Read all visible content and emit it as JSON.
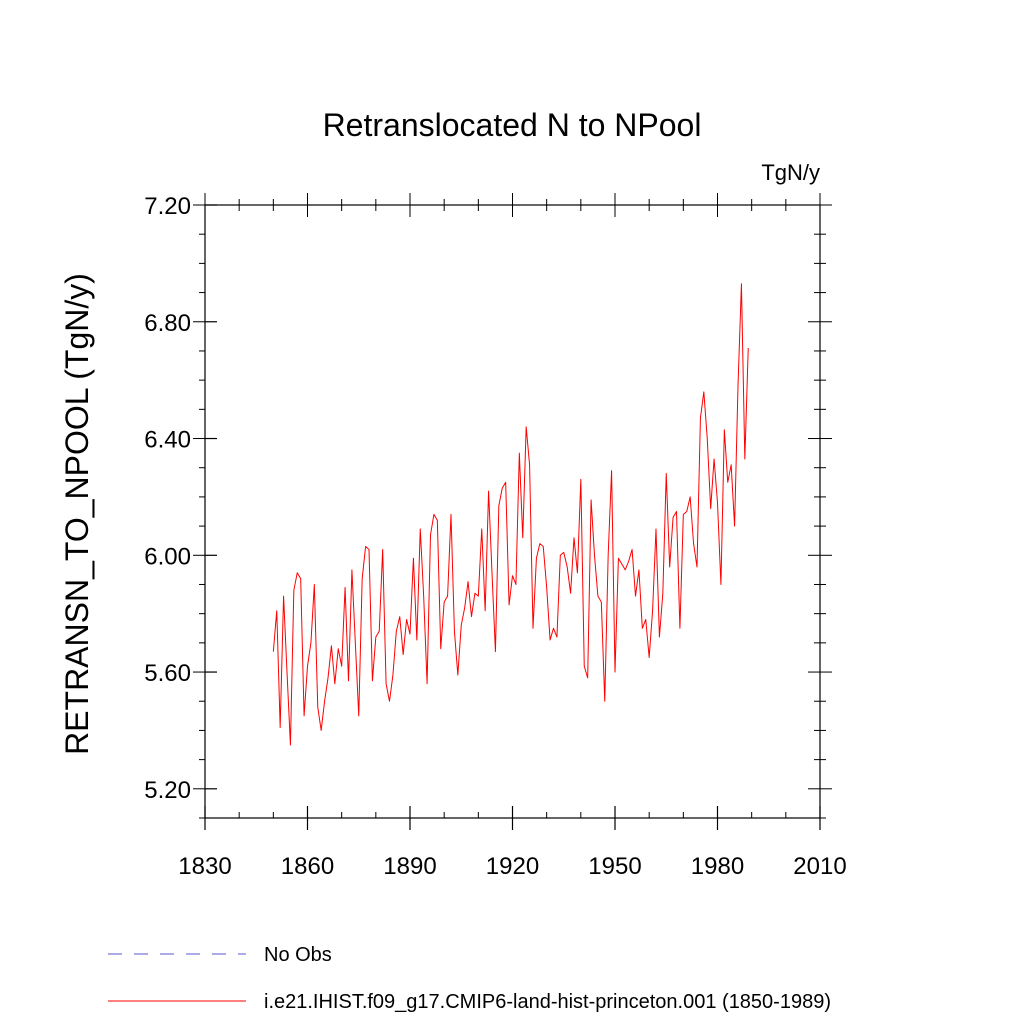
{
  "chart_data": {
    "type": "line",
    "title": "Retranslocated N to NPool",
    "units_label": "TgN/y",
    "ylabel": "RETRANSN_TO_NPOOL  (TgN/y)",
    "xlabel": "",
    "xlim": [
      1830,
      2010
    ],
    "ylim": [
      5.1,
      7.2
    ],
    "x_ticks": [
      "1830",
      "1860",
      "1890",
      "1920",
      "1950",
      "1980",
      "2010"
    ],
    "y_ticks": [
      "5.20",
      "5.60",
      "6.00",
      "6.40",
      "6.80",
      "7.20"
    ],
    "grid": false,
    "legend_position": "bottom-left",
    "series": [
      {
        "name": "No Obs",
        "color": "#5a5ad0",
        "dash": "dashed",
        "x": [],
        "y": []
      },
      {
        "name": "i.e21.IHIST.f09_g17.CMIP6-land-hist-princeton.001 (1850-1989)",
        "color": "#ff0000",
        "dash": "solid",
        "x": [
          1850,
          1851,
          1852,
          1853,
          1854,
          1855,
          1856,
          1857,
          1858,
          1859,
          1860,
          1861,
          1862,
          1863,
          1864,
          1865,
          1866,
          1867,
          1868,
          1869,
          1870,
          1871,
          1872,
          1873,
          1874,
          1875,
          1876,
          1877,
          1878,
          1879,
          1880,
          1881,
          1882,
          1883,
          1884,
          1885,
          1886,
          1887,
          1888,
          1889,
          1890,
          1891,
          1892,
          1893,
          1894,
          1895,
          1896,
          1897,
          1898,
          1899,
          1900,
          1901,
          1902,
          1903,
          1904,
          1905,
          1906,
          1907,
          1908,
          1909,
          1910,
          1911,
          1912,
          1913,
          1914,
          1915,
          1916,
          1917,
          1918,
          1919,
          1920,
          1921,
          1922,
          1923,
          1924,
          1925,
          1926,
          1927,
          1928,
          1929,
          1930,
          1931,
          1932,
          1933,
          1934,
          1935,
          1936,
          1937,
          1938,
          1939,
          1940,
          1941,
          1942,
          1943,
          1944,
          1945,
          1946,
          1947,
          1948,
          1949,
          1950,
          1951,
          1952,
          1953,
          1954,
          1955,
          1956,
          1957,
          1958,
          1959,
          1960,
          1961,
          1962,
          1963,
          1964,
          1965,
          1966,
          1967,
          1968,
          1969,
          1970,
          1971,
          1972,
          1973,
          1974,
          1975,
          1976,
          1977,
          1978,
          1979,
          1980,
          1981,
          1982,
          1983,
          1984,
          1985,
          1986,
          1987,
          1988,
          1989
        ],
        "y": [
          5.67,
          5.81,
          5.41,
          5.86,
          5.6,
          5.35,
          5.88,
          5.94,
          5.92,
          5.45,
          5.62,
          5.7,
          5.9,
          5.48,
          5.4,
          5.5,
          5.58,
          5.69,
          5.56,
          5.68,
          5.62,
          5.89,
          5.57,
          5.95,
          5.7,
          5.45,
          5.92,
          6.03,
          6.02,
          5.57,
          5.72,
          5.74,
          6.02,
          5.56,
          5.5,
          5.59,
          5.74,
          5.79,
          5.66,
          5.78,
          5.73,
          5.99,
          5.71,
          6.09,
          5.86,
          5.56,
          6.07,
          6.14,
          6.12,
          5.68,
          5.84,
          5.86,
          6.14,
          5.74,
          5.59,
          5.76,
          5.82,
          5.91,
          5.79,
          5.87,
          5.86,
          6.09,
          5.81,
          6.22,
          5.94,
          5.67,
          6.17,
          6.23,
          6.25,
          5.83,
          5.93,
          5.9,
          6.35,
          6.06,
          6.44,
          6.31,
          5.75,
          5.99,
          6.04,
          6.03,
          5.89,
          5.71,
          5.75,
          5.72,
          6.0,
          6.01,
          5.96,
          5.87,
          6.06,
          5.94,
          6.26,
          5.62,
          5.58,
          6.19,
          6.0,
          5.86,
          5.84,
          5.5,
          6.0,
          6.29,
          5.6,
          5.99,
          5.97,
          5.95,
          5.98,
          6.02,
          5.86,
          5.95,
          5.75,
          5.78,
          5.65,
          5.81,
          6.09,
          5.72,
          5.87,
          6.28,
          5.96,
          6.13,
          6.15,
          5.75,
          6.14,
          6.15,
          6.2,
          6.04,
          5.96,
          6.47,
          6.56,
          6.4,
          6.16,
          6.33,
          6.18,
          5.9,
          6.43,
          6.25,
          6.31,
          6.1,
          6.58,
          6.93,
          6.33,
          6.71
        ]
      }
    ]
  }
}
